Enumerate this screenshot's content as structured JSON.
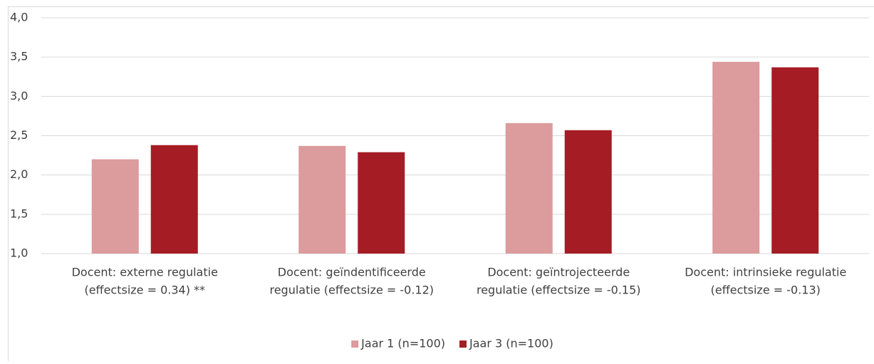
{
  "chart_data": {
    "type": "bar",
    "categories": [
      [
        "Docent: externe regulatie",
        "(effectsize = 0.34) **"
      ],
      [
        "Docent: geïndentificeerde",
        "regulatie (effectsize = -0.12)"
      ],
      [
        "Docent: geïntrojecteerde",
        "regulatie (effectsize = -0.15)"
      ],
      [
        "Docent: intrinsieke regulatie",
        "(effectsize = -0.13)"
      ]
    ],
    "series": [
      {
        "name": "Jaar 1 (n=100)",
        "color": "#dc9b9c",
        "values": [
          2.2,
          2.37,
          2.66,
          3.44
        ]
      },
      {
        "name": "Jaar 3 (n=100)",
        "color": "#a51c24",
        "values": [
          2.38,
          2.29,
          2.57,
          3.37
        ]
      }
    ],
    "ylim": [
      1.0,
      4.0
    ],
    "yticks": [
      {
        "value": 1.0,
        "label": "1,0"
      },
      {
        "value": 1.5,
        "label": "1,5"
      },
      {
        "value": 2.0,
        "label": "2,0"
      },
      {
        "value": 2.5,
        "label": "2,5"
      },
      {
        "value": 3.0,
        "label": "3,0"
      },
      {
        "value": 3.5,
        "label": "3,5"
      },
      {
        "value": 4.0,
        "label": "4,0"
      }
    ],
    "grid": true,
    "legend": "bottom"
  }
}
